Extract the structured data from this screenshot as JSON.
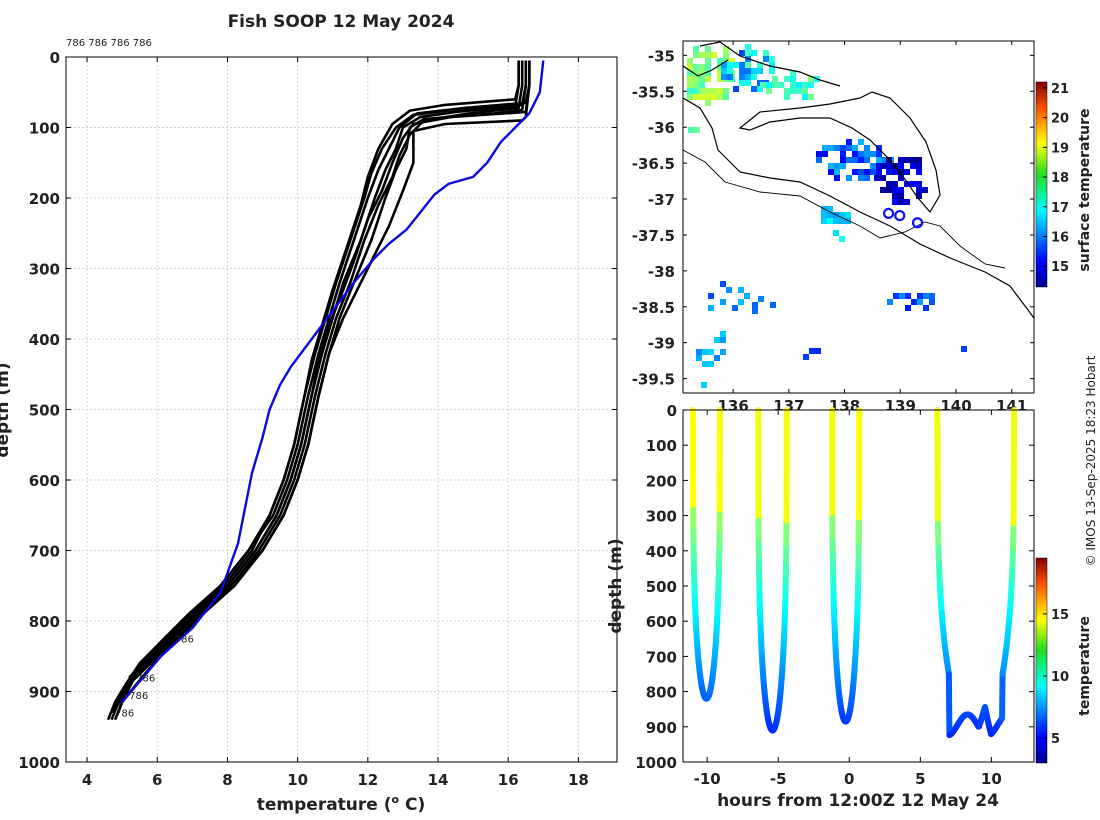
{
  "chart_data": [
    {
      "type": "line",
      "title": "Fish SOOP 12 May 2024",
      "xlabel_main": "temperature (",
      "xlabel_sup": "o",
      "xlabel_end": " C)",
      "ylabel": "depth (m)",
      "xlim": [
        3.4,
        19.1
      ],
      "ylim": [
        1000,
        0
      ],
      "xticks": [
        4,
        6,
        8,
        10,
        12,
        14,
        16,
        18
      ],
      "yticks": [
        0,
        100,
        200,
        300,
        400,
        500,
        600,
        700,
        800,
        900,
        1000
      ],
      "grid": true,
      "top_label": "786 786 786 786",
      "profile_labels": [
        {
          "text": "786",
          "t": 6.5,
          "d": 825
        },
        {
          "text": "786",
          "t": 5.4,
          "d": 880
        },
        {
          "text": "786",
          "t": 5.2,
          "d": 905
        },
        {
          "text": "786",
          "t": 4.8,
          "d": 930
        }
      ],
      "climatology": {
        "name": "climatology",
        "color": "#0a0adc",
        "points": [
          [
            17.0,
            5
          ],
          [
            16.9,
            50
          ],
          [
            16.6,
            80
          ],
          [
            15.8,
            120
          ],
          [
            15.4,
            150
          ],
          [
            15.0,
            170
          ],
          [
            14.3,
            180
          ],
          [
            13.9,
            195
          ],
          [
            13.5,
            220
          ],
          [
            13.1,
            245
          ],
          [
            12.6,
            265
          ],
          [
            12.2,
            285
          ],
          [
            11.6,
            320
          ],
          [
            11.0,
            360
          ],
          [
            10.4,
            400
          ],
          [
            9.8,
            440
          ],
          [
            9.5,
            465
          ],
          [
            9.2,
            500
          ],
          [
            9.0,
            540
          ],
          [
            8.7,
            590
          ],
          [
            8.5,
            640
          ],
          [
            8.3,
            690
          ],
          [
            7.8,
            760
          ],
          [
            7.0,
            810
          ],
          [
            6.1,
            850
          ],
          [
            5.6,
            880
          ],
          [
            5.0,
            915
          ]
        ]
      },
      "series": [
        {
          "name": "p1",
          "points": [
            [
              16.5,
              5
            ],
            [
              16.5,
              40
            ],
            [
              16.4,
              75
            ],
            [
              15.6,
              80
            ],
            [
              13.6,
              88
            ],
            [
              13.2,
              100
            ],
            [
              13.1,
              130
            ],
            [
              12.8,
              160
            ],
            [
              12.5,
              200
            ],
            [
              12.1,
              260
            ],
            [
              11.6,
              320
            ],
            [
              11.2,
              370
            ],
            [
              10.9,
              420
            ],
            [
              10.6,
              480
            ],
            [
              10.3,
              550
            ],
            [
              10.0,
              600
            ],
            [
              9.6,
              650
            ],
            [
              9.0,
              700
            ],
            [
              8.2,
              750
            ],
            [
              7.3,
              790
            ],
            [
              6.5,
              830
            ],
            [
              5.9,
              860
            ],
            [
              5.4,
              890
            ],
            [
              5.0,
              915
            ],
            [
              4.8,
              940
            ]
          ]
        },
        {
          "name": "p2",
          "points": [
            [
              16.3,
              5
            ],
            [
              16.3,
              40
            ],
            [
              16.2,
              70
            ],
            [
              14.5,
              78
            ],
            [
              13.5,
              85
            ],
            [
              13.0,
              100
            ],
            [
              12.8,
              130
            ],
            [
              12.5,
              160
            ],
            [
              12.2,
              200
            ],
            [
              11.8,
              260
            ],
            [
              11.3,
              320
            ],
            [
              11.0,
              370
            ],
            [
              10.7,
              420
            ],
            [
              10.4,
              480
            ],
            [
              10.1,
              550
            ],
            [
              9.8,
              600
            ],
            [
              9.4,
              650
            ],
            [
              8.8,
              700
            ],
            [
              8.0,
              750
            ],
            [
              7.1,
              790
            ],
            [
              6.3,
              830
            ],
            [
              5.7,
              860
            ],
            [
              5.2,
              890
            ],
            [
              4.9,
              915
            ],
            [
              4.7,
              940
            ]
          ]
        },
        {
          "name": "p3",
          "points": [
            [
              16.6,
              5
            ],
            [
              16.6,
              40
            ],
            [
              16.5,
              65
            ],
            [
              14.8,
              72
            ],
            [
              13.4,
              80
            ],
            [
              12.9,
              100
            ],
            [
              12.6,
              130
            ],
            [
              12.3,
              160
            ],
            [
              12.0,
              200
            ],
            [
              11.6,
              260
            ],
            [
              11.2,
              320
            ],
            [
              10.9,
              370
            ],
            [
              10.6,
              420
            ],
            [
              10.3,
              480
            ],
            [
              10.0,
              550
            ],
            [
              9.7,
              600
            ],
            [
              9.3,
              650
            ],
            [
              8.6,
              700
            ],
            [
              7.8,
              750
            ],
            [
              6.9,
              790
            ],
            [
              6.1,
              830
            ],
            [
              5.5,
              860
            ],
            [
              5.1,
              890
            ],
            [
              4.8,
              915
            ],
            [
              4.6,
              940
            ]
          ]
        },
        {
          "name": "p4",
          "points": [
            [
              16.4,
              5
            ],
            [
              16.4,
              40
            ],
            [
              16.3,
              72
            ],
            [
              14.9,
              80
            ],
            [
              13.6,
              90
            ],
            [
              13.2,
              110
            ],
            [
              12.9,
              140
            ],
            [
              12.7,
              170
            ],
            [
              12.3,
              210
            ],
            [
              11.9,
              260
            ],
            [
              11.5,
              320
            ],
            [
              11.1,
              370
            ],
            [
              10.8,
              420
            ],
            [
              10.5,
              480
            ],
            [
              10.2,
              550
            ],
            [
              9.9,
              600
            ],
            [
              9.5,
              650
            ],
            [
              8.9,
              700
            ],
            [
              8.1,
              750
            ],
            [
              7.2,
              790
            ],
            [
              6.4,
              830
            ],
            [
              5.8,
              860
            ],
            [
              5.3,
              885
            ],
            [
              5.0,
              910
            ],
            [
              4.9,
              930
            ]
          ]
        },
        {
          "name": "p5",
          "points": [
            [
              16.5,
              5
            ],
            [
              16.5,
              40
            ],
            [
              16.4,
              68
            ],
            [
              14.6,
              74
            ],
            [
              13.3,
              82
            ],
            [
              12.8,
              100
            ],
            [
              12.4,
              130
            ],
            [
              12.1,
              165
            ],
            [
              11.9,
              200
            ],
            [
              11.5,
              260
            ],
            [
              11.1,
              320
            ],
            [
              10.8,
              370
            ],
            [
              10.5,
              420
            ],
            [
              10.2,
              480
            ],
            [
              9.9,
              550
            ],
            [
              9.6,
              600
            ],
            [
              9.2,
              650
            ],
            [
              8.7,
              700
            ],
            [
              7.9,
              750
            ],
            [
              7.0,
              790
            ],
            [
              6.2,
              830
            ],
            [
              5.6,
              860
            ],
            [
              5.2,
              885
            ],
            [
              4.9,
              910
            ],
            [
              4.7,
              930
            ]
          ]
        },
        {
          "name": "p6",
          "points": [
            [
              16.6,
              5
            ],
            [
              16.6,
              40
            ],
            [
              16.5,
              78
            ],
            [
              14.4,
              85
            ],
            [
              13.3,
              95
            ],
            [
              13.0,
              115
            ],
            [
              12.7,
              150
            ],
            [
              12.4,
              190
            ],
            [
              12.0,
              230
            ],
            [
              11.6,
              290
            ],
            [
              11.3,
              330
            ],
            [
              10.9,
              380
            ],
            [
              10.6,
              430
            ],
            [
              10.4,
              480
            ],
            [
              10.1,
              550
            ],
            [
              9.8,
              600
            ],
            [
              9.4,
              650
            ],
            [
              8.8,
              700
            ],
            [
              8.0,
              750
            ],
            [
              7.1,
              790
            ],
            [
              6.3,
              830
            ],
            [
              5.7,
              860
            ],
            [
              5.3,
              885
            ],
            [
              5.1,
              905
            ]
          ]
        },
        {
          "name": "p7",
          "points": [
            [
              16.3,
              5
            ],
            [
              16.3,
              40
            ],
            [
              16.2,
              60
            ],
            [
              14.2,
              68
            ],
            [
              13.2,
              76
            ],
            [
              12.7,
              95
            ],
            [
              12.3,
              130
            ],
            [
              12.0,
              170
            ],
            [
              11.8,
              210
            ],
            [
              11.4,
              270
            ],
            [
              11.0,
              330
            ],
            [
              10.7,
              380
            ],
            [
              10.4,
              430
            ],
            [
              10.2,
              480
            ],
            [
              9.9,
              550
            ],
            [
              9.6,
              600
            ],
            [
              9.2,
              650
            ],
            [
              8.6,
              700
            ],
            [
              7.8,
              750
            ],
            [
              6.9,
              790
            ],
            [
              6.1,
              830
            ],
            [
              5.6,
              860
            ],
            [
              5.2,
              880
            ]
          ]
        },
        {
          "name": "p8",
          "points": [
            [
              16.6,
              5
            ],
            [
              16.6,
              40
            ],
            [
              16.5,
              85
            ],
            [
              16.4,
              90
            ],
            [
              14.2,
              95
            ],
            [
              13.3,
              105
            ],
            [
              13.3,
              150
            ],
            [
              13.0,
              190
            ],
            [
              12.6,
              240
            ],
            [
              12.2,
              280
            ],
            [
              11.8,
              320
            ],
            [
              11.3,
              370
            ],
            [
              10.9,
              420
            ],
            [
              10.6,
              480
            ],
            [
              10.3,
              550
            ],
            [
              10.0,
              600
            ],
            [
              9.6,
              650
            ],
            [
              9.0,
              700
            ],
            [
              8.1,
              750
            ],
            [
              7.2,
              790
            ],
            [
              6.4,
              830
            ],
            [
              5.8,
              860
            ],
            [
              5.4,
              880
            ]
          ]
        }
      ]
    },
    {
      "type": "heatmap",
      "xticks": [
        136,
        137,
        138,
        139,
        140,
        141
      ],
      "yticks": [
        -35,
        -35.5,
        -36,
        -36.5,
        -37,
        -37.5,
        -38,
        -38.5,
        -39,
        -39.5
      ],
      "xlim": [
        135.1,
        141.4
      ],
      "ylim": [
        -39.7,
        -34.8
      ],
      "colorbar_label": "surface temperature",
      "colorbar_ticks": [
        15,
        16,
        17,
        18,
        19,
        20,
        21
      ],
      "colorbar_range": [
        14.3,
        21.2
      ],
      "stations": [
        {
          "lon": 138.79,
          "lat": -37.2
        },
        {
          "lon": 138.99,
          "lat": -37.23
        },
        {
          "lon": 139.31,
          "lat": -37.33
        }
      ]
    },
    {
      "type": "scatter",
      "xlabel": "hours from 12:00Z 12 May 24",
      "ylabel": "depth (m)",
      "xlim": [
        -11.7,
        13.0
      ],
      "ylim": [
        1000,
        0
      ],
      "xticks": [
        -10,
        -5,
        0,
        5,
        10
      ],
      "yticks": [
        0,
        100,
        200,
        300,
        400,
        500,
        600,
        700,
        800,
        900,
        1000
      ],
      "colorbar_label": "temperature",
      "colorbar_ticks": [
        5,
        10,
        15
      ],
      "colorbar_range": [
        3,
        19.5
      ],
      "casts": [
        {
          "start": -11.0,
          "end": -9.1,
          "max_depth": 820
        },
        {
          "start": -6.4,
          "end": -4.4,
          "max_depth": 910
        },
        {
          "start": -1.2,
          "end": 0.7,
          "max_depth": 885
        },
        {
          "start": 6.2,
          "end": 11.6,
          "max_depth": 935
        }
      ]
    }
  ],
  "credit": "© IMOS 13-Sep-2025 18:23 Hobart"
}
